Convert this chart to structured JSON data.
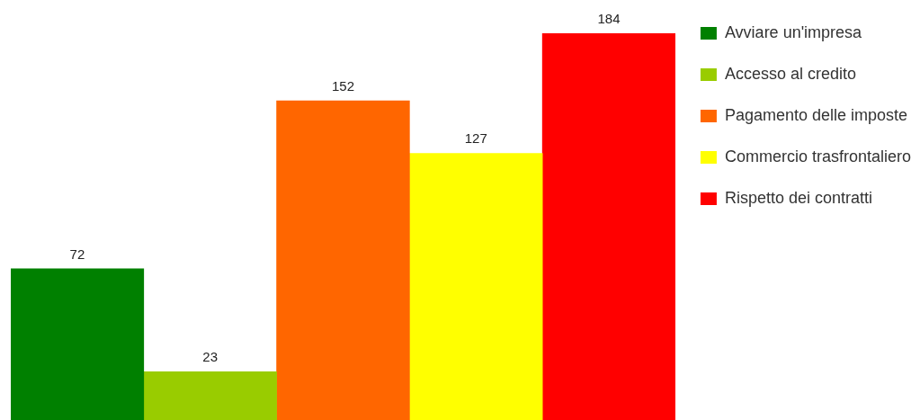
{
  "chart_data": {
    "type": "bar",
    "categories": [
      null
    ],
    "series": [
      {
        "name": "Avviare un'impresa",
        "color": "#008000",
        "values": [
          72
        ]
      },
      {
        "name": "Accesso al credito",
        "color": "#99cc00",
        "values": [
          23
        ]
      },
      {
        "name": "Pagamento delle imposte",
        "color": "#ff6600",
        "values": [
          152
        ]
      },
      {
        "name": "Commercio trasfrontaliero",
        "color": "#ffff00",
        "values": [
          127
        ]
      },
      {
        "name": "Rispetto dei contratti",
        "color": "#ff0000",
        "values": [
          184
        ]
      }
    ],
    "data_labels": true,
    "legend": "top right",
    "tick_labels": false
  }
}
